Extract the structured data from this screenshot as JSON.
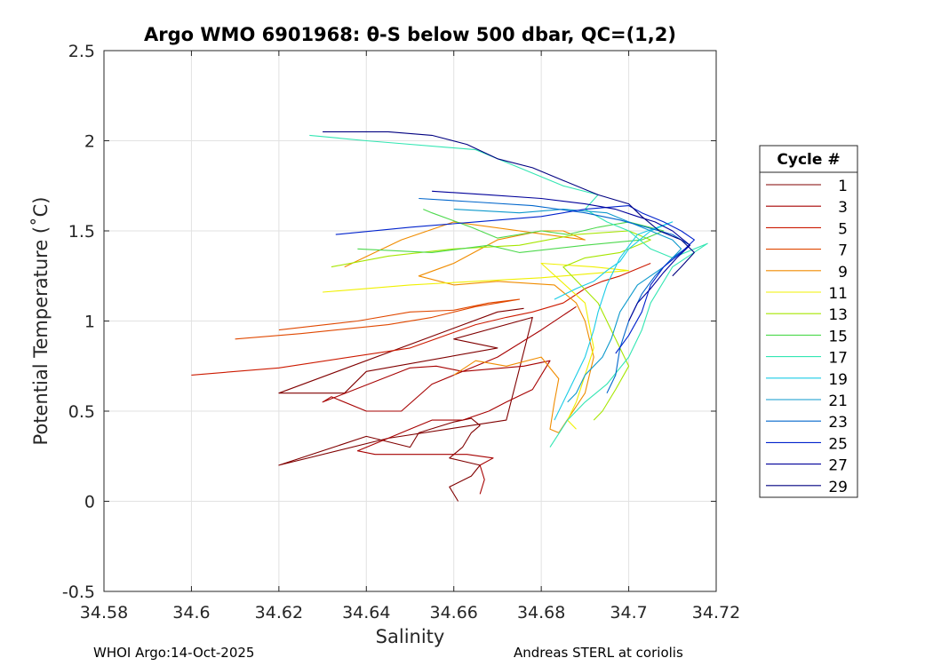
{
  "chart_data": {
    "type": "line",
    "title": "Argo WMO 6901968: θ-S below 500 dbar,  QC=(1,2)",
    "xlabel": "Salinity",
    "ylabel": "Potential Temperature (˚C)",
    "xlim": [
      34.58,
      34.72
    ],
    "ylim": [
      -0.5,
      2.5
    ],
    "xticks": [
      "34.58",
      "34.6",
      "34.62",
      "34.64",
      "34.66",
      "34.68",
      "34.7",
      "34.72"
    ],
    "yticks": [
      "-0.5",
      "0",
      "0.5",
      "1",
      "1.5",
      "2",
      "2.5"
    ],
    "grid": true,
    "legend": {
      "title": "Cycle #",
      "placement": "right, outside plot",
      "entries": [
        "1",
        "3",
        "5",
        "7",
        "9",
        "11",
        "13",
        "15",
        "17",
        "19",
        "21",
        "23",
        "25",
        "27",
        "29"
      ]
    },
    "series": [
      {
        "name": "1",
        "color": "#800000",
        "points": [
          [
            34.661,
            0.0
          ],
          [
            34.66,
            0.04
          ],
          [
            34.659,
            0.08
          ],
          [
            34.664,
            0.14
          ],
          [
            34.666,
            0.2
          ],
          [
            34.659,
            0.24
          ],
          [
            34.662,
            0.3
          ],
          [
            34.664,
            0.38
          ],
          [
            34.666,
            0.42
          ],
          [
            34.664,
            0.46
          ],
          [
            34.66,
            0.44
          ],
          [
            34.652,
            0.38
          ],
          [
            34.65,
            0.3
          ],
          [
            34.64,
            0.36
          ],
          [
            34.62,
            0.2
          ],
          [
            34.645,
            0.35
          ],
          [
            34.672,
            0.45
          ],
          [
            34.678,
            1.02
          ],
          [
            34.66,
            0.9
          ],
          [
            34.67,
            0.85
          ],
          [
            34.64,
            0.72
          ],
          [
            34.635,
            0.6
          ],
          [
            34.62,
            0.6
          ],
          [
            34.67,
            1.05
          ],
          [
            34.676,
            1.07
          ]
        ]
      },
      {
        "name": "3",
        "color": "#a60000",
        "points": [
          [
            34.666,
            0.04
          ],
          [
            34.667,
            0.12
          ],
          [
            34.666,
            0.2
          ],
          [
            34.669,
            0.24
          ],
          [
            34.663,
            0.26
          ],
          [
            34.657,
            0.26
          ],
          [
            34.642,
            0.26
          ],
          [
            34.638,
            0.28
          ],
          [
            34.645,
            0.35
          ],
          [
            34.65,
            0.4
          ],
          [
            34.655,
            0.45
          ],
          [
            34.662,
            0.45
          ],
          [
            34.668,
            0.5
          ],
          [
            34.672,
            0.55
          ],
          [
            34.678,
            0.62
          ],
          [
            34.682,
            0.78
          ],
          [
            34.676,
            0.75
          ],
          [
            34.662,
            0.72
          ],
          [
            34.656,
            0.75
          ],
          [
            34.65,
            0.74
          ],
          [
            34.63,
            0.55
          ],
          [
            34.632,
            0.58
          ],
          [
            34.64,
            0.5
          ],
          [
            34.648,
            0.5
          ],
          [
            34.655,
            0.65
          ],
          [
            34.66,
            0.7
          ],
          [
            34.67,
            0.8
          ],
          [
            34.68,
            0.95
          ],
          [
            34.688,
            1.08
          ]
        ]
      },
      {
        "name": "5",
        "color": "#cc1a00",
        "points": [
          [
            34.6,
            0.7
          ],
          [
            34.62,
            0.74
          ],
          [
            34.65,
            0.85
          ],
          [
            34.665,
            0.98
          ],
          [
            34.672,
            1.02
          ],
          [
            34.678,
            1.05
          ],
          [
            34.685,
            1.1
          ],
          [
            34.69,
            1.18
          ],
          [
            34.694,
            1.22
          ],
          [
            34.698,
            1.25
          ],
          [
            34.705,
            1.32
          ]
        ]
      },
      {
        "name": "7",
        "color": "#e04800",
        "points": [
          [
            34.61,
            0.9
          ],
          [
            34.625,
            0.93
          ],
          [
            34.645,
            0.98
          ],
          [
            34.655,
            1.02
          ],
          [
            34.665,
            1.08
          ],
          [
            34.675,
            1.12
          ],
          [
            34.668,
            1.1
          ],
          [
            34.66,
            1.06
          ],
          [
            34.65,
            1.05
          ],
          [
            34.638,
            1.0
          ],
          [
            34.62,
            0.95
          ]
        ]
      },
      {
        "name": "9",
        "color": "#f08c00",
        "points": [
          [
            34.66,
            0.7
          ],
          [
            34.665,
            0.78
          ],
          [
            34.672,
            0.75
          ],
          [
            34.68,
            0.8
          ],
          [
            34.684,
            0.68
          ],
          [
            34.683,
            0.55
          ],
          [
            34.682,
            0.4
          ],
          [
            34.684,
            0.38
          ],
          [
            34.69,
            0.6
          ],
          [
            34.692,
            0.8
          ],
          [
            34.69,
            1.0
          ],
          [
            34.688,
            1.1
          ],
          [
            34.683,
            1.2
          ],
          [
            34.67,
            1.22
          ],
          [
            34.66,
            1.2
          ],
          [
            34.652,
            1.25
          ],
          [
            34.66,
            1.32
          ],
          [
            34.67,
            1.45
          ],
          [
            34.68,
            1.5
          ],
          [
            34.685,
            1.5
          ],
          [
            34.69,
            1.45
          ],
          [
            34.66,
            1.55
          ],
          [
            34.648,
            1.45
          ],
          [
            34.635,
            1.3
          ]
        ]
      },
      {
        "name": "11",
        "color": "#f0f000",
        "points": [
          [
            34.63,
            1.16
          ],
          [
            34.65,
            1.2
          ],
          [
            34.665,
            1.22
          ],
          [
            34.68,
            1.24
          ],
          [
            34.69,
            1.26
          ],
          [
            34.7,
            1.28
          ],
          [
            34.692,
            1.3
          ],
          [
            34.68,
            1.32
          ],
          [
            34.69,
            1.1
          ],
          [
            34.692,
            0.85
          ],
          [
            34.69,
            0.7
          ],
          [
            34.688,
            0.55
          ],
          [
            34.686,
            0.45
          ],
          [
            34.688,
            0.4
          ]
        ]
      },
      {
        "name": "13",
        "color": "#a6e600",
        "points": [
          [
            34.632,
            1.3
          ],
          [
            34.645,
            1.36
          ],
          [
            34.66,
            1.4
          ],
          [
            34.675,
            1.42
          ],
          [
            34.688,
            1.48
          ],
          [
            34.7,
            1.5
          ],
          [
            34.705,
            1.45
          ],
          [
            34.698,
            1.38
          ],
          [
            34.69,
            1.35
          ],
          [
            34.685,
            1.3
          ],
          [
            34.693,
            1.1
          ],
          [
            34.697,
            0.9
          ],
          [
            34.7,
            0.75
          ],
          [
            34.697,
            0.62
          ],
          [
            34.694,
            0.5
          ],
          [
            34.692,
            0.45
          ]
        ]
      },
      {
        "name": "15",
        "color": "#4dd94d",
        "points": [
          [
            34.638,
            1.4
          ],
          [
            34.655,
            1.38
          ],
          [
            34.668,
            1.42
          ],
          [
            34.675,
            1.38
          ],
          [
            34.69,
            1.42
          ],
          [
            34.703,
            1.45
          ],
          [
            34.708,
            1.5
          ],
          [
            34.7,
            1.55
          ],
          [
            34.693,
            1.52
          ],
          [
            34.686,
            1.48
          ],
          [
            34.68,
            1.5
          ],
          [
            34.67,
            1.46
          ],
          [
            34.664,
            1.52
          ],
          [
            34.655,
            1.6
          ],
          [
            34.653,
            1.62
          ]
        ]
      },
      {
        "name": "17",
        "color": "#33e6b3",
        "points": [
          [
            34.627,
            2.03
          ],
          [
            34.64,
            2.0
          ],
          [
            34.645,
            1.99
          ],
          [
            34.665,
            1.95
          ],
          [
            34.675,
            1.85
          ],
          [
            34.685,
            1.75
          ],
          [
            34.693,
            1.7
          ],
          [
            34.69,
            1.62
          ],
          [
            34.695,
            1.55
          ],
          [
            34.7,
            1.5
          ],
          [
            34.705,
            1.4
          ],
          [
            34.71,
            1.35
          ],
          [
            34.718,
            1.43
          ],
          [
            34.71,
            1.3
          ],
          [
            34.705,
            1.1
          ],
          [
            34.703,
            0.95
          ],
          [
            34.7,
            0.8
          ],
          [
            34.695,
            0.65
          ],
          [
            34.69,
            0.55
          ],
          [
            34.686,
            0.45
          ],
          [
            34.682,
            0.3
          ]
        ]
      },
      {
        "name": "19",
        "color": "#1acce6",
        "points": [
          [
            34.683,
            1.12
          ],
          [
            34.688,
            1.18
          ],
          [
            34.692,
            1.22
          ],
          [
            34.695,
            1.28
          ],
          [
            34.698,
            1.33
          ],
          [
            34.7,
            1.4
          ],
          [
            34.705,
            1.5
          ],
          [
            34.71,
            1.55
          ],
          [
            34.702,
            1.48
          ],
          [
            34.698,
            1.35
          ],
          [
            34.695,
            1.2
          ],
          [
            34.693,
            1.05
          ],
          [
            34.692,
            0.95
          ],
          [
            34.69,
            0.8
          ],
          [
            34.686,
            0.6
          ],
          [
            34.683,
            0.45
          ]
        ]
      },
      {
        "name": "21",
        "color": "#0d99cc",
        "points": [
          [
            34.66,
            1.62
          ],
          [
            34.675,
            1.6
          ],
          [
            34.685,
            1.62
          ],
          [
            34.695,
            1.6
          ],
          [
            34.7,
            1.55
          ],
          [
            34.705,
            1.5
          ],
          [
            34.71,
            1.45
          ],
          [
            34.712,
            1.4
          ],
          [
            34.708,
            1.3
          ],
          [
            34.702,
            1.2
          ],
          [
            34.698,
            1.05
          ],
          [
            34.696,
            0.9
          ],
          [
            34.694,
            0.8
          ],
          [
            34.69,
            0.7
          ],
          [
            34.688,
            0.6
          ],
          [
            34.686,
            0.55
          ]
        ]
      },
      {
        "name": "23",
        "color": "#0066cc",
        "points": [
          [
            34.652,
            1.68
          ],
          [
            34.665,
            1.66
          ],
          [
            34.678,
            1.64
          ],
          [
            34.69,
            1.6
          ],
          [
            34.698,
            1.56
          ],
          [
            34.704,
            1.52
          ],
          [
            34.71,
            1.48
          ],
          [
            34.714,
            1.42
          ],
          [
            34.71,
            1.35
          ],
          [
            34.706,
            1.25
          ],
          [
            34.703,
            1.15
          ],
          [
            34.7,
            1.0
          ],
          [
            34.698,
            0.85
          ],
          [
            34.697,
            0.7
          ],
          [
            34.695,
            0.6
          ]
        ]
      },
      {
        "name": "25",
        "color": "#0022cc",
        "points": [
          [
            34.633,
            1.48
          ],
          [
            34.65,
            1.52
          ],
          [
            34.665,
            1.55
          ],
          [
            34.68,
            1.58
          ],
          [
            34.69,
            1.62
          ],
          [
            34.7,
            1.64
          ],
          [
            34.703,
            1.6
          ],
          [
            34.708,
            1.55
          ],
          [
            34.712,
            1.5
          ],
          [
            34.715,
            1.45
          ],
          [
            34.712,
            1.38
          ],
          [
            34.708,
            1.3
          ],
          [
            34.705,
            1.2
          ],
          [
            34.703,
            1.05
          ],
          [
            34.7,
            0.92
          ],
          [
            34.697,
            0.82
          ]
        ]
      },
      {
        "name": "27",
        "color": "#00009a",
        "points": [
          [
            34.655,
            1.72
          ],
          [
            34.668,
            1.7
          ],
          [
            34.68,
            1.68
          ],
          [
            34.69,
            1.65
          ],
          [
            34.697,
            1.62
          ],
          [
            34.702,
            1.58
          ],
          [
            34.706,
            1.55
          ],
          [
            34.71,
            1.5
          ],
          [
            34.714,
            1.42
          ],
          [
            34.711,
            1.35
          ],
          [
            34.708,
            1.27
          ],
          [
            34.705,
            1.18
          ],
          [
            34.702,
            1.1
          ],
          [
            34.7,
            1.0
          ]
        ]
      },
      {
        "name": "29",
        "color": "#000080",
        "points": [
          [
            34.63,
            2.05
          ],
          [
            34.645,
            2.05
          ],
          [
            34.655,
            2.03
          ],
          [
            34.663,
            1.98
          ],
          [
            34.67,
            1.9
          ],
          [
            34.678,
            1.85
          ],
          [
            34.685,
            1.78
          ],
          [
            34.693,
            1.7
          ],
          [
            34.7,
            1.65
          ],
          [
            34.703,
            1.58
          ],
          [
            34.707,
            1.5
          ],
          [
            34.712,
            1.45
          ],
          [
            34.715,
            1.38
          ],
          [
            34.712,
            1.3
          ],
          [
            34.71,
            1.25
          ]
        ]
      }
    ]
  },
  "footer": {
    "left": "WHOI Argo:14-Oct-2025",
    "right": "Andreas STERL at coriolis"
  }
}
